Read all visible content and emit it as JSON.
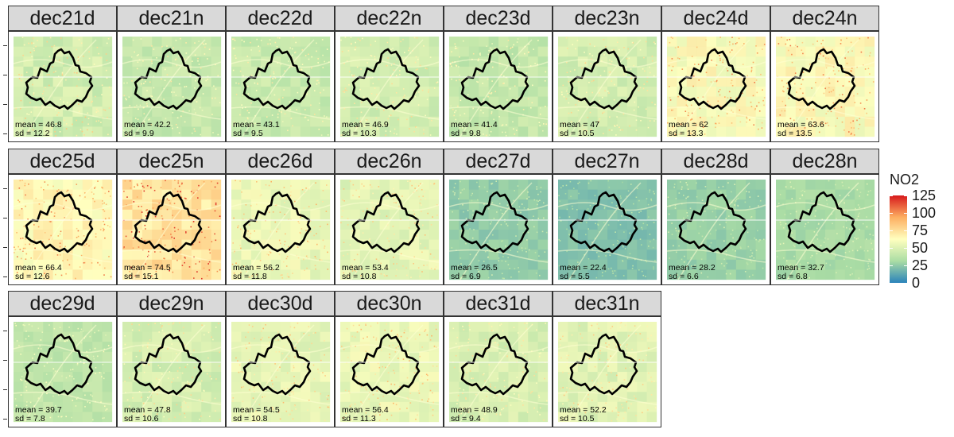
{
  "chart_data": {
    "type": "heatmap",
    "description_variable": "NO2",
    "legend": {
      "title": "NO2",
      "position": "right",
      "breaks": [
        0,
        25,
        50,
        75,
        100,
        125
      ],
      "range": [
        0,
        125
      ],
      "colors": [
        "#2b83ba",
        "#abdda4",
        "#ffffbf",
        "#fdae61",
        "#d7191c"
      ]
    },
    "panels": [
      {
        "label": "dec21d",
        "mean": 46.8,
        "sd": 12.2,
        "mean_text": "mean = 46.8",
        "sd_text": "sd = 12.2"
      },
      {
        "label": "dec21n",
        "mean": 42.2,
        "sd": 9.9,
        "mean_text": "mean = 42.2",
        "sd_text": "sd = 9.9"
      },
      {
        "label": "dec22d",
        "mean": 43.1,
        "sd": 9.5,
        "mean_text": "mean = 43.1",
        "sd_text": "sd = 9.5"
      },
      {
        "label": "dec22n",
        "mean": 46.9,
        "sd": 10.3,
        "mean_text": "mean = 46.9",
        "sd_text": "sd = 10.3"
      },
      {
        "label": "dec23d",
        "mean": 41.4,
        "sd": 9.8,
        "mean_text": "mean = 41.4",
        "sd_text": "sd = 9.8"
      },
      {
        "label": "dec23n",
        "mean": 47,
        "sd": 10.5,
        "mean_text": "mean = 47",
        "sd_text": "sd = 10.5"
      },
      {
        "label": "dec24d",
        "mean": 62,
        "sd": 13.3,
        "mean_text": "mean = 62",
        "sd_text": "sd = 13.3"
      },
      {
        "label": "dec24n",
        "mean": 63.6,
        "sd": 13.5,
        "mean_text": "mean = 63.6",
        "sd_text": "sd = 13.5"
      },
      {
        "label": "dec25d",
        "mean": 66.4,
        "sd": 12.6,
        "mean_text": "mean = 66.4",
        "sd_text": "sd = 12.6"
      },
      {
        "label": "dec25n",
        "mean": 74.5,
        "sd": 15.1,
        "mean_text": "mean = 74.5",
        "sd_text": "sd = 15.1"
      },
      {
        "label": "dec26d",
        "mean": 56.2,
        "sd": 11.8,
        "mean_text": "mean = 56.2",
        "sd_text": "sd = 11.8"
      },
      {
        "label": "dec26n",
        "mean": 53.4,
        "sd": 10.8,
        "mean_text": "mean = 53.4",
        "sd_text": "sd = 10.8"
      },
      {
        "label": "dec27d",
        "mean": 26.5,
        "sd": 6.9,
        "mean_text": "mean = 26.5",
        "sd_text": "sd = 6.9"
      },
      {
        "label": "dec27n",
        "mean": 22.4,
        "sd": 5.5,
        "mean_text": "mean = 22.4",
        "sd_text": "sd = 5.5"
      },
      {
        "label": "dec28d",
        "mean": 28.2,
        "sd": 6.6,
        "mean_text": "mean = 28.2",
        "sd_text": "sd = 6.6"
      },
      {
        "label": "dec28n",
        "mean": 32.7,
        "sd": 6.8,
        "mean_text": "mean = 32.7",
        "sd_text": "sd = 6.8"
      },
      {
        "label": "dec29d",
        "mean": 39.7,
        "sd": 7.8,
        "mean_text": "mean = 39.7",
        "sd_text": "sd = 7.8"
      },
      {
        "label": "dec29n",
        "mean": 47.8,
        "sd": 10.6,
        "mean_text": "mean = 47.8",
        "sd_text": "sd = 10.6"
      },
      {
        "label": "dec30d",
        "mean": 54.5,
        "sd": 10.8,
        "mean_text": "mean = 54.5",
        "sd_text": "sd = 10.8"
      },
      {
        "label": "dec30n",
        "mean": 56.4,
        "sd": 11.3,
        "mean_text": "mean = 56.4",
        "sd_text": "sd = 11.3"
      },
      {
        "label": "dec31d",
        "mean": 48.9,
        "sd": 9.4,
        "mean_text": "mean = 48.9",
        "sd_text": "sd = 9.4"
      },
      {
        "label": "dec31n",
        "mean": 52.2,
        "sd": 10.5,
        "mean_text": "mean = 52.2",
        "sd_text": "sd = 10.5"
      }
    ]
  }
}
